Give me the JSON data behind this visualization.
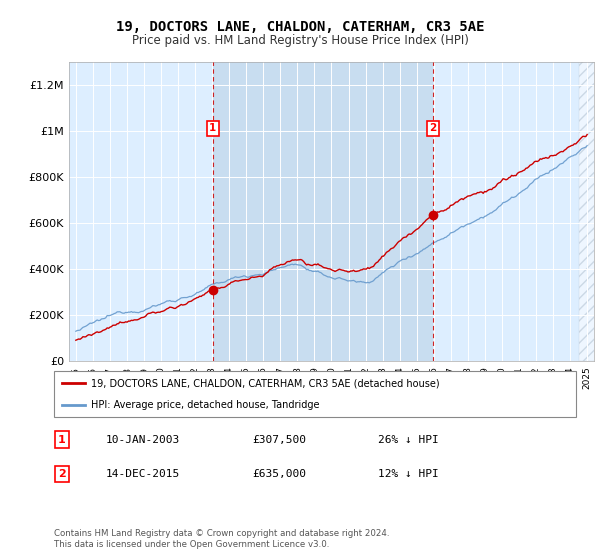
{
  "title": "19, DOCTORS LANE, CHALDON, CATERHAM, CR3 5AE",
  "subtitle": "Price paid vs. HM Land Registry's House Price Index (HPI)",
  "legend_line1": "19, DOCTORS LANE, CHALDON, CATERHAM, CR3 5AE (detached house)",
  "legend_line2": "HPI: Average price, detached house, Tandridge",
  "annotation1_date": "10-JAN-2003",
  "annotation1_price": "£307,500",
  "annotation1_hpi": "26% ↓ HPI",
  "annotation2_date": "14-DEC-2015",
  "annotation2_price": "£635,000",
  "annotation2_hpi": "12% ↓ HPI",
  "footer": "Contains HM Land Registry data © Crown copyright and database right 2024.\nThis data is licensed under the Open Government Licence v3.0.",
  "hpi_color": "#6699cc",
  "price_color": "#cc0000",
  "dashed_line_color": "#cc0000",
  "plot_bg_color": "#ddeeff",
  "highlight_bg_color": "#c8ddf0",
  "ylim": [
    0,
    1300000
  ],
  "yticks": [
    0,
    200000,
    400000,
    600000,
    800000,
    1000000,
    1200000
  ],
  "ytick_labels": [
    "£0",
    "£200K",
    "£400K",
    "£600K",
    "£800K",
    "£1M",
    "£1.2M"
  ],
  "year_start": 1995,
  "year_end": 2025,
  "t1_year": 2003.04,
  "t1_price": 307500,
  "t2_year": 2015.96,
  "t2_price": 635000
}
